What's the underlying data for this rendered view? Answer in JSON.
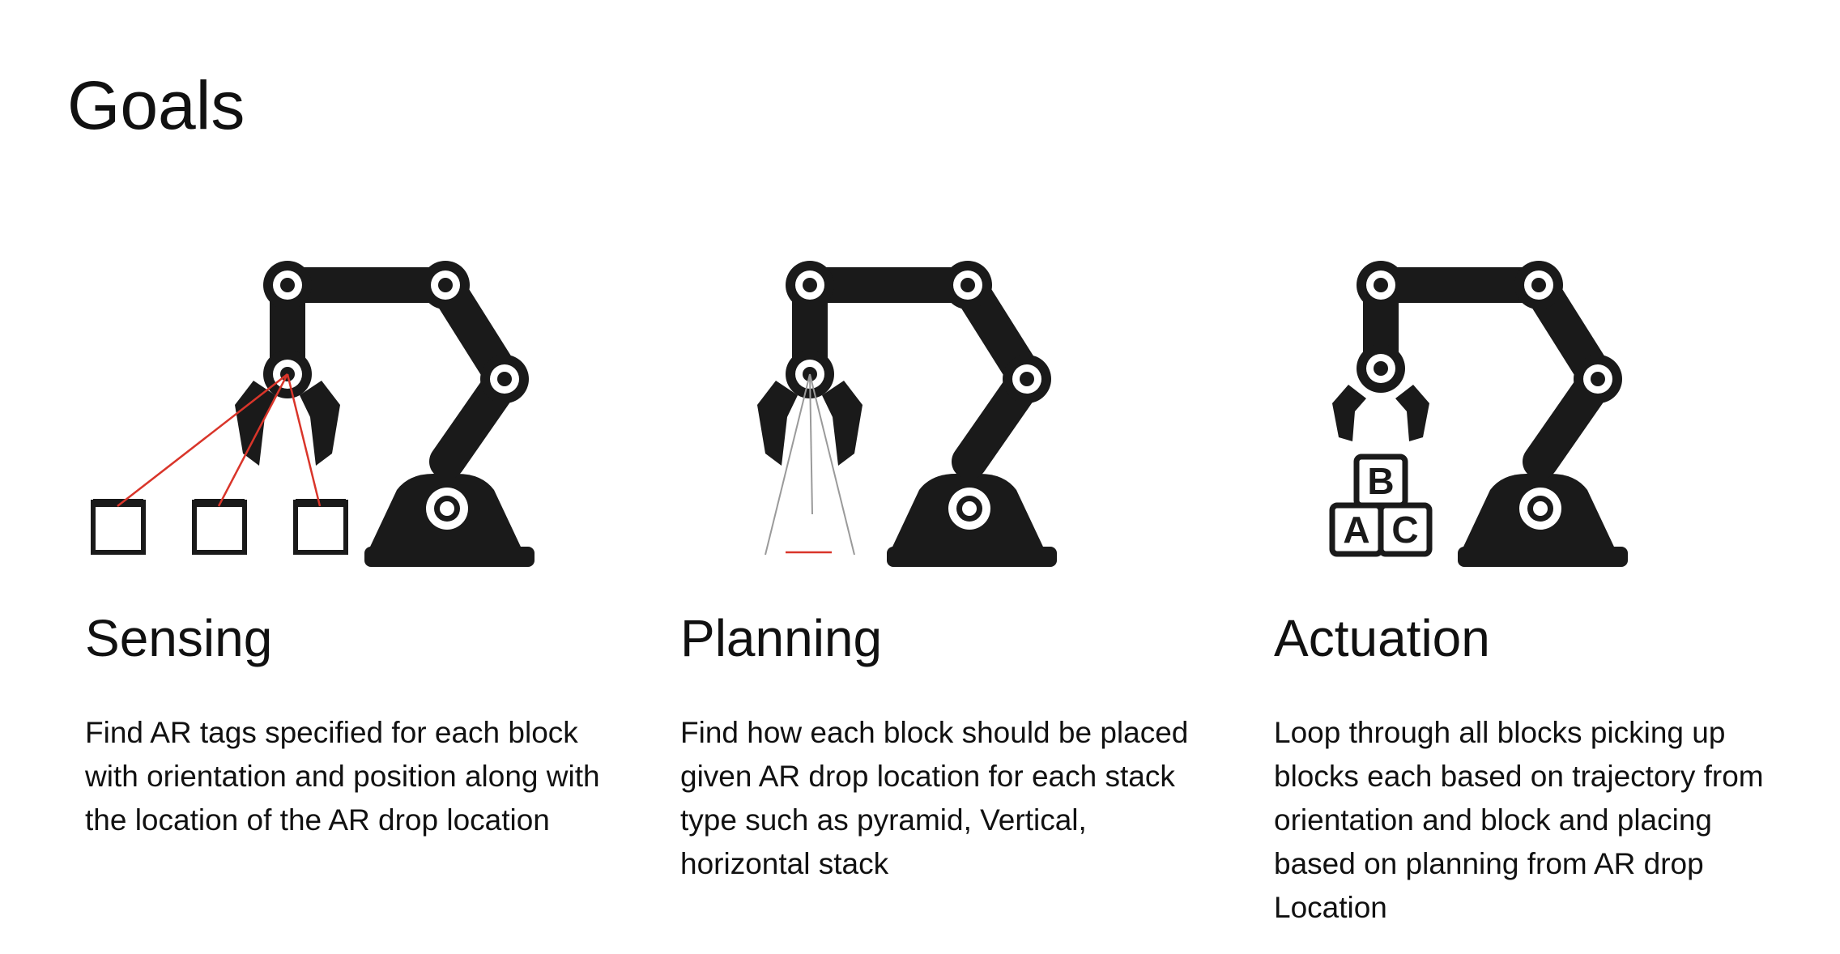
{
  "slide": {
    "title": "Goals",
    "columns": [
      {
        "heading": "Sensing",
        "text": "Find AR tags specified for each block with orientation and position along with the location of the AR drop location",
        "illustration": "robot-arm-sensing-icon"
      },
      {
        "heading": "Planning",
        "text": "Find how each block should be placed given AR drop location for each stack type such as pyramid, Vertical, horizontal stack",
        "illustration": "robot-arm-planning-icon"
      },
      {
        "heading": "Actuation",
        "text": "Loop through all blocks picking up blocks each based on trajectory from orientation and block and placing based on planning from AR drop Location",
        "illustration": "robot-arm-actuation-icon",
        "block_letters": [
          "B",
          "A",
          "C"
        ]
      }
    ],
    "colors": {
      "arm": "#1a1a1a",
      "sensor_line": "#d9352a",
      "cone_line": "#9a9a9a"
    }
  }
}
